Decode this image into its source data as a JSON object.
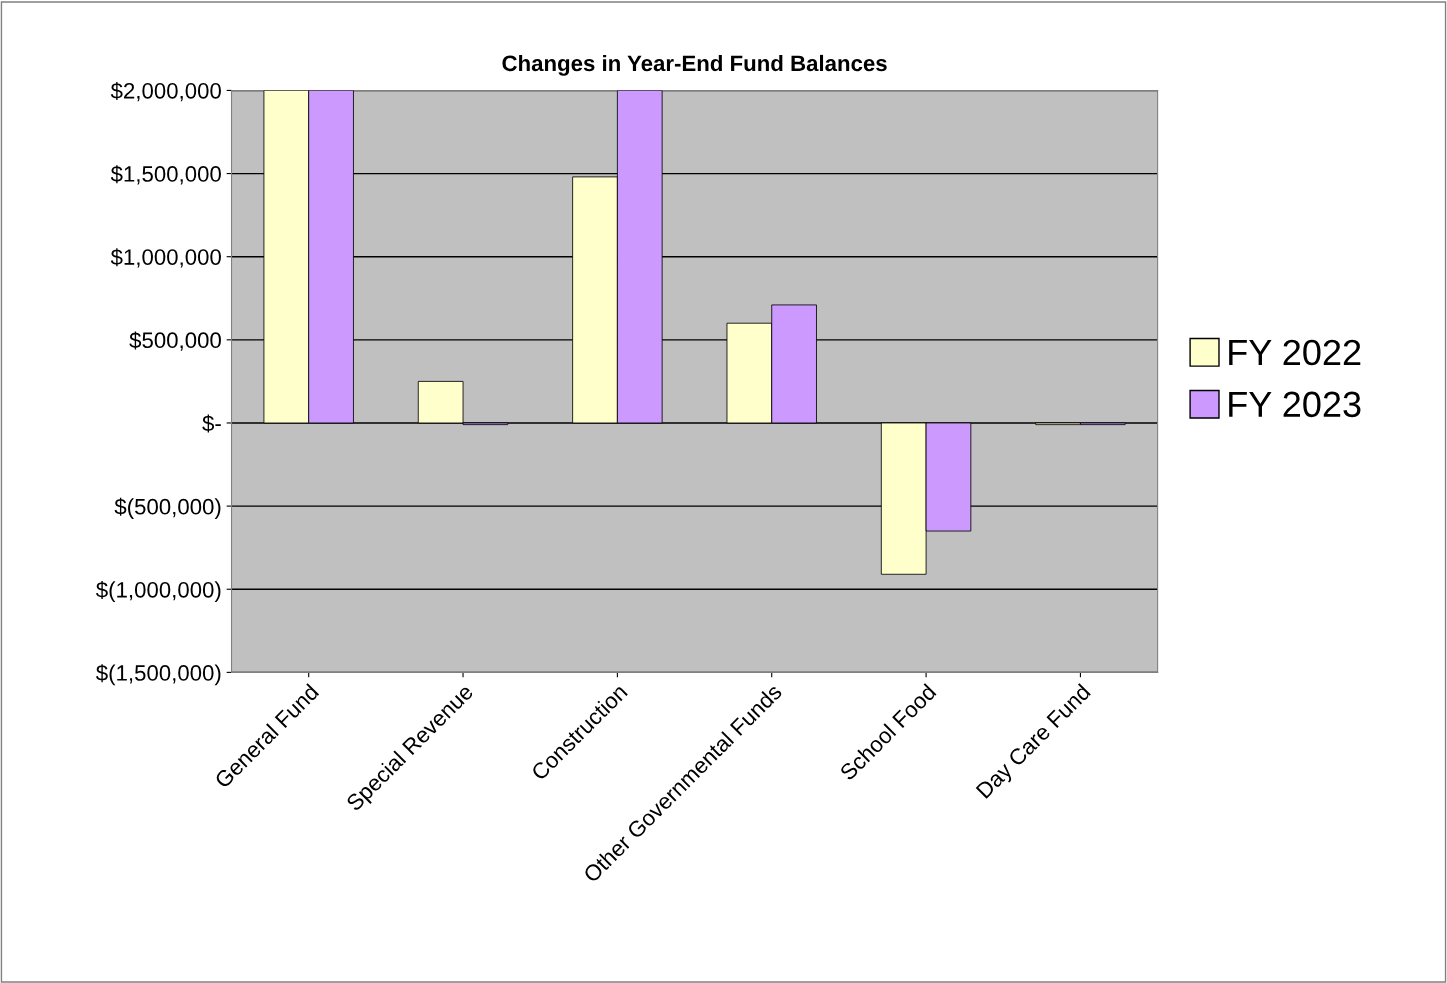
{
  "chart_data": {
    "type": "bar",
    "title": "Changes in Year-End Fund Balances",
    "categories": [
      "General Fund",
      "Special Revenue",
      "Construction",
      "Other Governmental Funds",
      "School Food",
      "Day Care Fund"
    ],
    "series": [
      {
        "name": "FY 2022",
        "color": "#ffffcc",
        "values": [
          2000000,
          250000,
          1480000,
          600000,
          -910000,
          -10000
        ]
      },
      {
        "name": "FY 2023",
        "color": "#cc99ff",
        "values": [
          2000000,
          -10000,
          2000000,
          710000,
          -650000,
          -10000
        ]
      }
    ],
    "ylim": [
      -1500000,
      2000000
    ],
    "yticks": [
      {
        "value": -1500000,
        "label": "$(1,500,000)"
      },
      {
        "value": -1000000,
        "label": "$(1,000,000)"
      },
      {
        "value": -500000,
        "label": "$(500,000)"
      },
      {
        "value": 0,
        "label": "$-"
      },
      {
        "value": 500000,
        "label": "$500,000"
      },
      {
        "value": 1000000,
        "label": "$1,000,000"
      },
      {
        "value": 1500000,
        "label": "$1,500,000"
      },
      {
        "value": 2000000,
        "label": "$2,000,000"
      }
    ],
    "grid": "y",
    "legend": "right"
  }
}
